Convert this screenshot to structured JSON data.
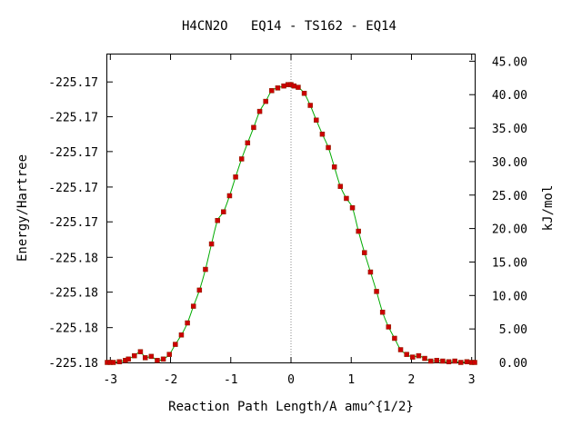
{
  "chart_data": {
    "type": "line",
    "title": "H4CN2O   EQ14 - TS162 - EQ14",
    "xlabel": "Reaction Path Length/A amu^{1/2}",
    "ylabel_left": "Energy/Hartree",
    "ylabel_right": "kJ/mol",
    "xlim": [
      -3.05,
      3.05
    ],
    "ylim_kjmol": [
      0,
      46.0
    ],
    "x_ticks": [
      -3,
      -2,
      -1,
      0,
      1,
      2,
      3
    ],
    "x_tick_labels": [
      "-3",
      "-2",
      "-1",
      "0",
      "1",
      "2",
      "3"
    ],
    "left_ticks_kjmol": [
      0,
      5.2,
      10.5,
      15.7,
      21.0,
      26.2,
      31.5,
      36.7,
      41.9
    ],
    "left_tick_labels": [
      "-225.18",
      "-225.18",
      "-225.18",
      "-225.18",
      "-225.17",
      "-225.17",
      "-225.17",
      "-225.17",
      "-225.17"
    ],
    "right_ticks": [
      0,
      5,
      10,
      15,
      20,
      25,
      30,
      35,
      40,
      45
    ],
    "right_tick_labels": [
      "0.00",
      "5.00",
      "10.00",
      "15.00",
      "20.00",
      "25.00",
      "30.00",
      "35.00",
      "40.00",
      "45.00"
    ],
    "ts_marker_x": 0,
    "grid": false,
    "line_color": "#00aa00",
    "point_color": "#cc0000",
    "series": [
      {
        "x": [
          -3.05,
          -3.0,
          -2.95,
          -2.85,
          -2.75,
          -2.7,
          -2.6,
          -2.5,
          -2.42,
          -2.32,
          -2.22,
          -2.12,
          -2.02,
          -1.92,
          -1.82,
          -1.72,
          -1.62,
          -1.52,
          -1.42,
          -1.32,
          -1.22,
          -1.12,
          -1.02,
          -0.92,
          -0.82,
          -0.72,
          -0.62,
          -0.52,
          -0.42,
          -0.32,
          -0.22,
          -0.12,
          -0.05,
          0.0,
          0.05,
          0.12,
          0.22,
          0.32,
          0.42,
          0.52,
          0.62,
          0.72,
          0.82,
          0.92,
          1.02,
          1.12,
          1.22,
          1.32,
          1.42,
          1.52,
          1.62,
          1.72,
          1.82,
          1.92,
          2.02,
          2.12,
          2.22,
          2.32,
          2.42,
          2.52,
          2.62,
          2.72,
          2.82,
          2.92,
          3.0,
          3.05
        ],
        "y": [
          0.0,
          0.0,
          0.0,
          0.1,
          0.3,
          0.5,
          1.0,
          1.6,
          0.7,
          0.9,
          0.3,
          0.5,
          1.2,
          2.7,
          4.1,
          5.9,
          8.4,
          10.8,
          13.9,
          17.7,
          21.2,
          22.5,
          24.9,
          27.7,
          30.4,
          32.8,
          35.1,
          37.5,
          39.0,
          40.6,
          41.0,
          41.3,
          41.5,
          41.5,
          41.3,
          41.1,
          40.2,
          38.4,
          36.2,
          34.1,
          32.1,
          29.2,
          26.3,
          24.5,
          23.1,
          19.6,
          16.4,
          13.5,
          10.6,
          7.5,
          5.3,
          3.6,
          1.9,
          1.2,
          0.8,
          1.0,
          0.6,
          0.2,
          0.3,
          0.2,
          0.1,
          0.2,
          0.0,
          0.1,
          0.0,
          0.0
        ]
      }
    ]
  }
}
